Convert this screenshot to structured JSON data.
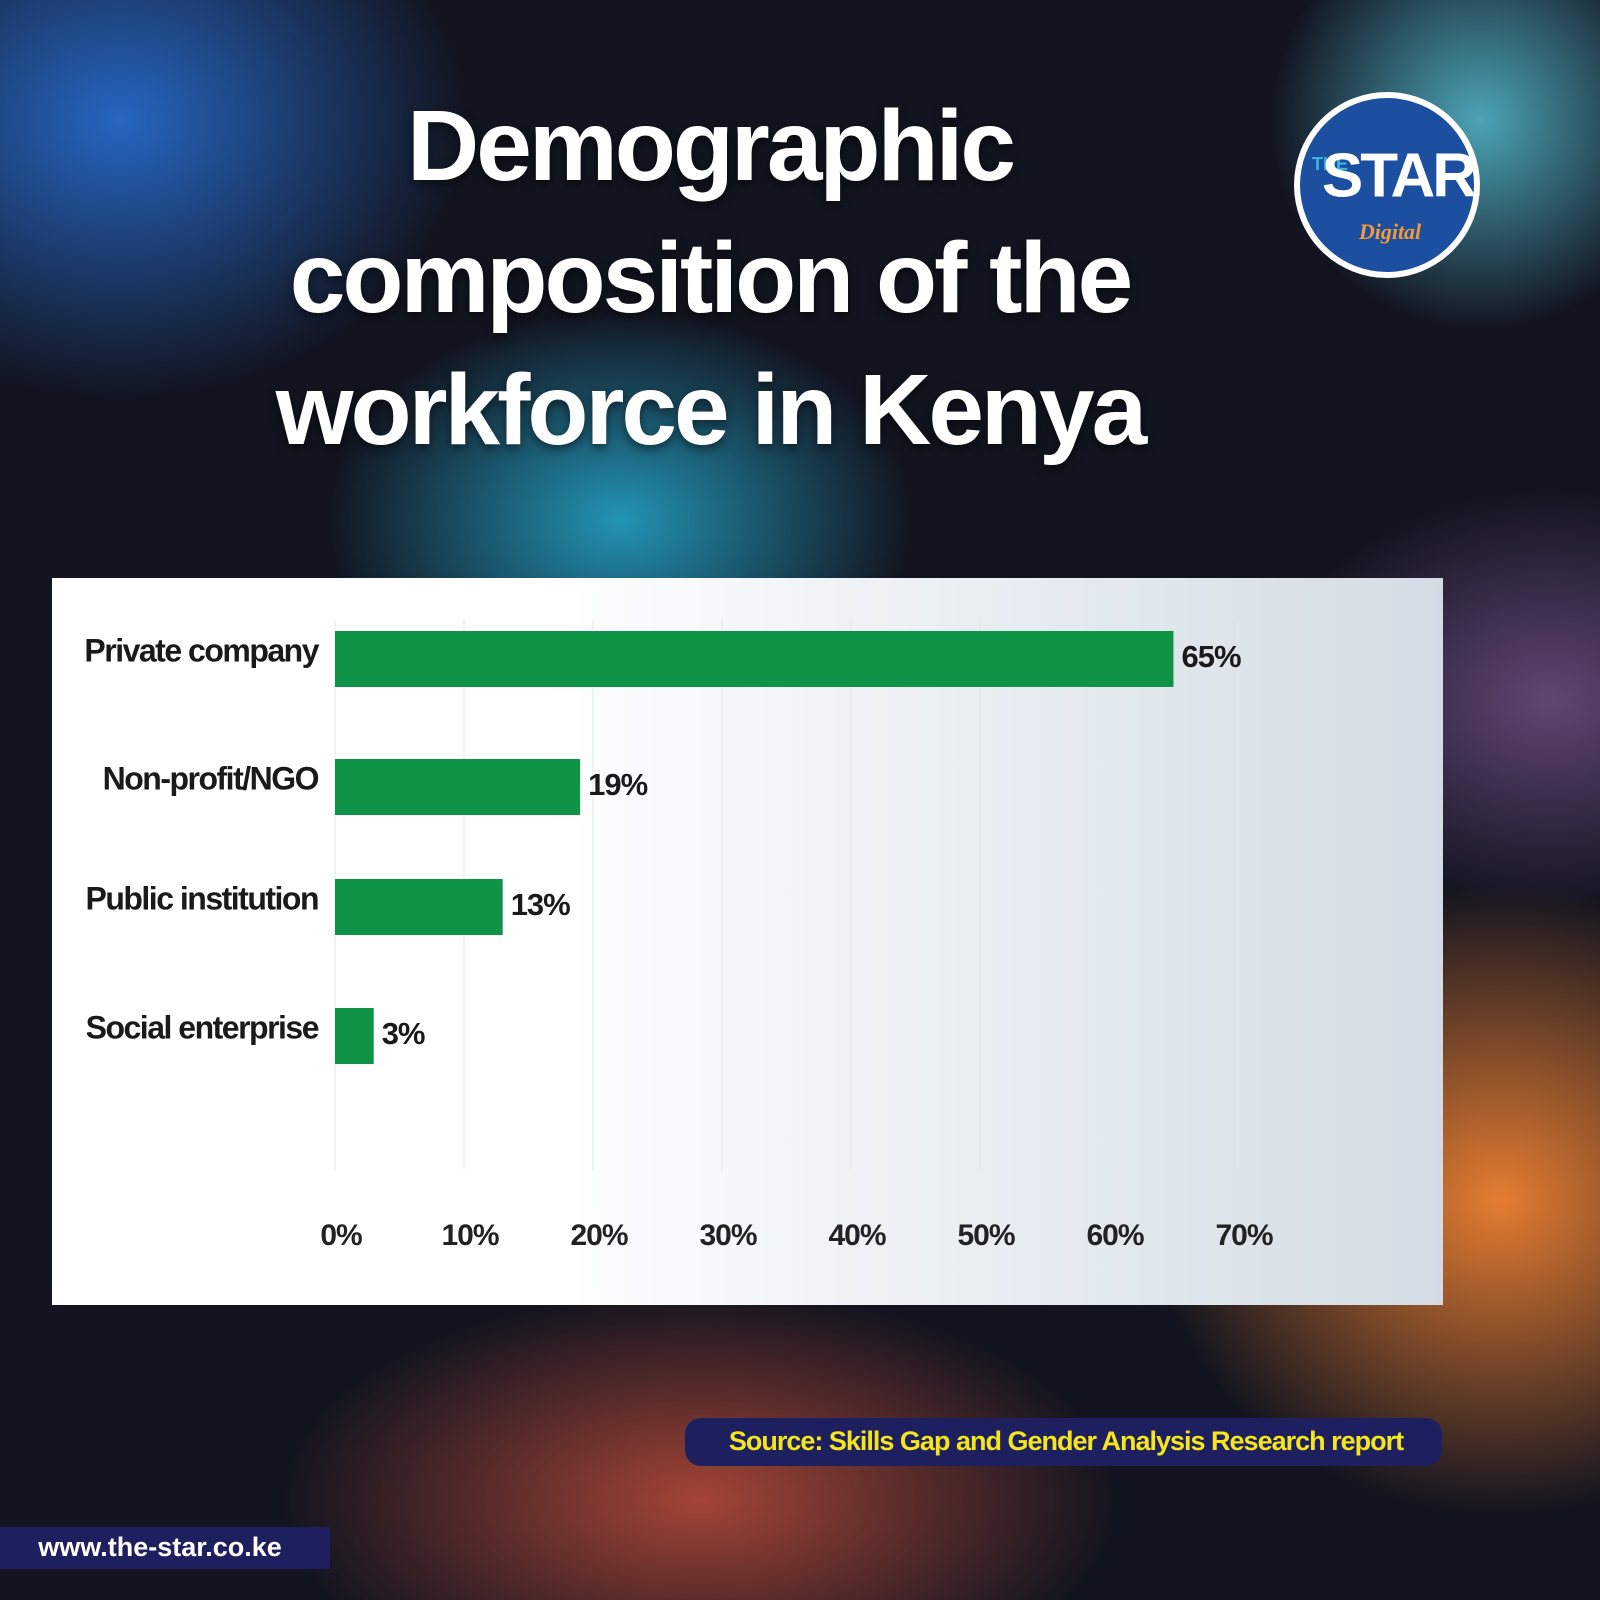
{
  "chart_data": {
    "type": "bar",
    "orientation": "horizontal",
    "title": "Demographic composition of the workforce in Kenya",
    "categories": [
      "Private company",
      "Non-profit/NGO",
      "Public institution",
      "Social enterprise"
    ],
    "values": [
      65,
      19,
      13,
      3
    ],
    "value_labels": [
      "65%",
      "19%",
      "13%",
      "3%"
    ],
    "color": "#0f9447",
    "xlim": [
      0,
      70
    ],
    "xticks": [
      {
        "value": 0,
        "label": "0%"
      },
      {
        "value": 10,
        "label": "10%"
      },
      {
        "value": 20,
        "label": "20%"
      },
      {
        "value": 30,
        "label": "30%"
      },
      {
        "value": 40,
        "label": "40%"
      },
      {
        "value": 50,
        "label": "50%"
      },
      {
        "value": 60,
        "label": "60%"
      },
      {
        "value": 70,
        "label": "70%"
      }
    ],
    "grid": true,
    "source": "Source: Skills Gap and Gender Analysis  Research report",
    "website": "www.the-star.co.ke",
    "logo": {
      "the": "THE",
      "star": "STAR",
      "digital": "Digital"
    }
  }
}
